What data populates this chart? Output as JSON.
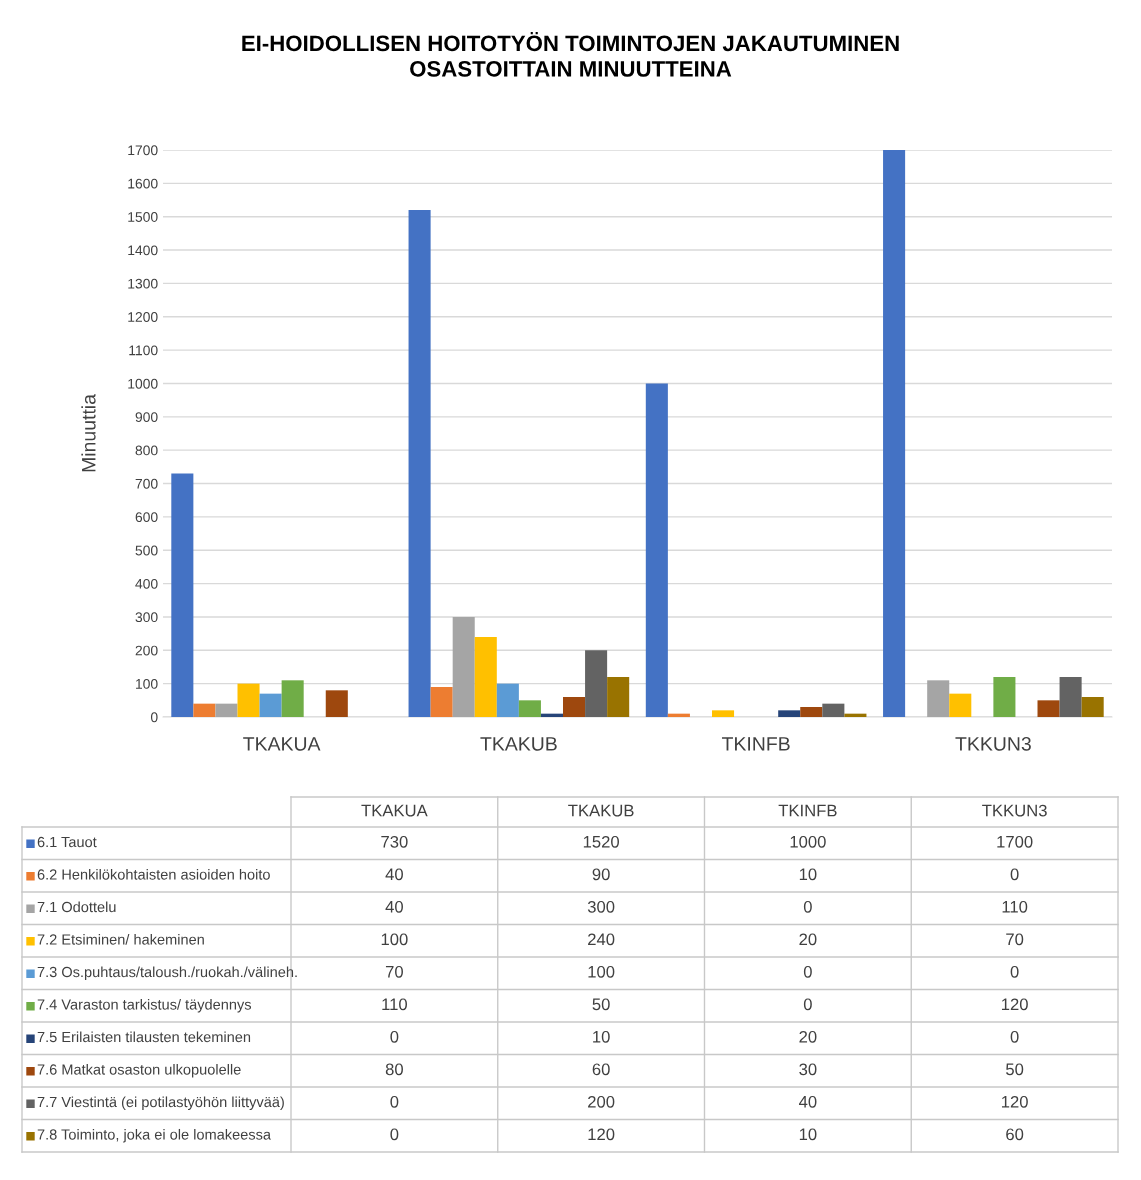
{
  "chart_data": {
    "type": "bar",
    "title": "EI-HOIDOLLISEN HOITOTYÖN TOIMINTOJEN JAKAUTUMINEN\nOSASTOITTAIN MINUUTTEINA",
    "ylabel": "Minuuttia",
    "categories": [
      "TKAKUA",
      "TKAKUB",
      "TKINFB",
      "TKKUN3"
    ],
    "series": [
      {
        "name": "6.1 Tauot",
        "color": "#4472c4",
        "values": [
          730,
          1520,
          1000,
          1700
        ]
      },
      {
        "name": "6.2 Henkilökohtaisten asioiden hoito",
        "color": "#ed7d31",
        "values": [
          40,
          90,
          10,
          0
        ]
      },
      {
        "name": "7.1 Odottelu",
        "color": "#a5a5a5",
        "values": [
          40,
          300,
          0,
          110
        ]
      },
      {
        "name": "7.2 Etsiminen/ hakeminen",
        "color": "#ffc000",
        "values": [
          100,
          240,
          20,
          70
        ]
      },
      {
        "name": "7.3 Os.puhtaus/taloush./ruokah./välineh.",
        "color": "#5b9bd5",
        "values": [
          70,
          100,
          0,
          0
        ]
      },
      {
        "name": "7.4 Varaston tarkistus/ täydennys",
        "color": "#70ad47",
        "values": [
          110,
          50,
          0,
          120
        ]
      },
      {
        "name": "7.5 Erilaisten tilausten tekeminen",
        "color": "#264478",
        "values": [
          0,
          10,
          20,
          0
        ]
      },
      {
        "name": "7.6 Matkat osaston ulkopuolelle",
        "color": "#9e480e",
        "values": [
          80,
          60,
          30,
          50
        ]
      },
      {
        "name": "7.7 Viestintä (ei potilastyöhön liittyvää)",
        "color": "#636363",
        "values": [
          0,
          200,
          40,
          120
        ]
      },
      {
        "name": "7.8 Toiminto, joka ei ole lomakeessa",
        "color": "#997300",
        "values": [
          0,
          120,
          10,
          60
        ]
      }
    ],
    "ylim": [
      0,
      1700
    ],
    "yticks": [
      0,
      100,
      200,
      300,
      400,
      500,
      600,
      700,
      800,
      900,
      1000,
      1100,
      1200,
      1300,
      1400,
      1500,
      1600,
      1700
    ],
    "grid": "y",
    "legend": "bottom",
    "data_labels": true
  }
}
